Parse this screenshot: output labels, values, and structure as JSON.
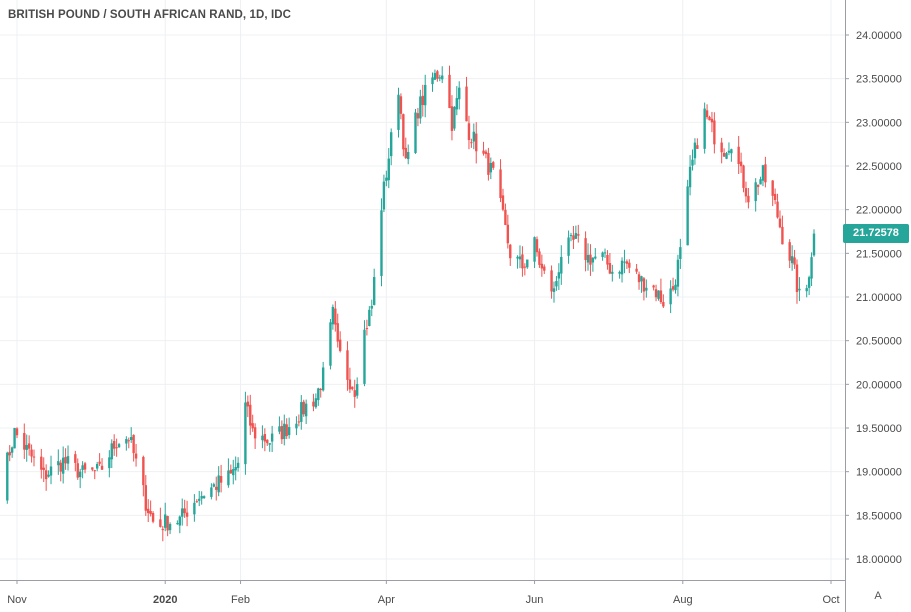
{
  "chart_data": {
    "type": "candlestick",
    "title": "BRITISH POUND / SOUTH AFRICAN RAND, 1D, IDC",
    "last_price": "21.72578",
    "ylim": [
      17.92,
      24.22
    ],
    "y_ticks": [
      "18.00000",
      "18.50000",
      "19.00000",
      "19.50000",
      "20.00000",
      "20.50000",
      "21.00000",
      "21.50000",
      "22.00000",
      "22.50000",
      "23.00000",
      "23.50000",
      "24.00000"
    ],
    "x_ticks": [
      "Nov",
      "2020",
      "Feb",
      "Apr",
      "Jun",
      "Aug",
      "Oct"
    ],
    "grid": true,
    "colors": {
      "up": "#26a69a",
      "down": "#ef5350",
      "grid": "#eef0f3",
      "axis_text": "#4a4a4a"
    },
    "anchors": [
      [
        "2019-10-25",
        18.8
      ],
      [
        "2019-10-31",
        19.45
      ],
      [
        "2019-11-05",
        19.25
      ],
      [
        "2019-11-12",
        18.95
      ],
      [
        "2019-11-20",
        19.12
      ],
      [
        "2019-11-28",
        18.98
      ],
      [
        "2019-12-05",
        19.0
      ],
      [
        "2019-12-12",
        19.35
      ],
      [
        "2019-12-17",
        19.4
      ],
      [
        "2019-12-20",
        19.1
      ],
      [
        "2019-12-24",
        18.65
      ],
      [
        "2019-12-28",
        18.35
      ],
      [
        "2020-01-01",
        18.42
      ],
      [
        "2020-01-07",
        18.45
      ],
      [
        "2020-01-14",
        18.7
      ],
      [
        "2020-01-22",
        18.85
      ],
      [
        "2020-01-28",
        18.95
      ],
      [
        "2020-01-31",
        19.1
      ],
      [
        "2020-02-03",
        19.75
      ],
      [
        "2020-02-06",
        19.45
      ],
      [
        "2020-02-13",
        19.35
      ],
      [
        "2020-02-20",
        19.5
      ],
      [
        "2020-02-28",
        19.75
      ],
      [
        "2020-03-03",
        19.85
      ],
      [
        "2020-03-06",
        20.1
      ],
      [
        "2020-03-10",
        20.8
      ],
      [
        "2020-03-12",
        20.4
      ],
      [
        "2020-03-16",
        20.1
      ],
      [
        "2020-03-19",
        19.95
      ],
      [
        "2020-03-23",
        20.6
      ],
      [
        "2020-03-26",
        20.9
      ],
      [
        "2020-03-30",
        22.05
      ],
      [
        "2020-04-03",
        22.8
      ],
      [
        "2020-04-06",
        23.4
      ],
      [
        "2020-04-09",
        22.5
      ],
      [
        "2020-04-14",
        23.15
      ],
      [
        "2020-04-20",
        23.5
      ],
      [
        "2020-04-24",
        23.6
      ],
      [
        "2020-04-28",
        23.0
      ],
      [
        "2020-05-01",
        23.35
      ],
      [
        "2020-05-05",
        22.9
      ],
      [
        "2020-05-11",
        22.6
      ],
      [
        "2020-05-15",
        22.4
      ],
      [
        "2020-05-19",
        21.9
      ],
      [
        "2020-05-22",
        21.5
      ],
      [
        "2020-05-27",
        21.35
      ],
      [
        "2020-06-01",
        21.6
      ],
      [
        "2020-06-04",
        21.3
      ],
      [
        "2020-06-09",
        21.05
      ],
      [
        "2020-06-12",
        21.5
      ],
      [
        "2020-06-18",
        21.65
      ],
      [
        "2020-06-23",
        21.45
      ],
      [
        "2020-06-29",
        21.45
      ],
      [
        "2020-07-03",
        21.3
      ],
      [
        "2020-07-08",
        21.4
      ],
      [
        "2020-07-14",
        21.2
      ],
      [
        "2020-07-20",
        21.1
      ],
      [
        "2020-07-24",
        20.95
      ],
      [
        "2020-07-28",
        21.1
      ],
      [
        "2020-07-31",
        21.5
      ],
      [
        "2020-08-04",
        22.4
      ],
      [
        "2020-08-07",
        22.8
      ],
      [
        "2020-08-10",
        23.1
      ],
      [
        "2020-08-14",
        22.85
      ],
      [
        "2020-08-18",
        22.7
      ],
      [
        "2020-08-21",
        22.8
      ],
      [
        "2020-08-25",
        22.4
      ],
      [
        "2020-08-28",
        22.15
      ],
      [
        "2020-09-03",
        22.4
      ],
      [
        "2020-09-08",
        22.05
      ],
      [
        "2020-09-11",
        21.7
      ],
      [
        "2020-09-15",
        21.4
      ],
      [
        "2020-09-18",
        21.0
      ],
      [
        "2020-09-21",
        21.1
      ],
      [
        "2020-09-24",
        21.73
      ]
    ]
  },
  "ui": {
    "auto_label": "A"
  }
}
